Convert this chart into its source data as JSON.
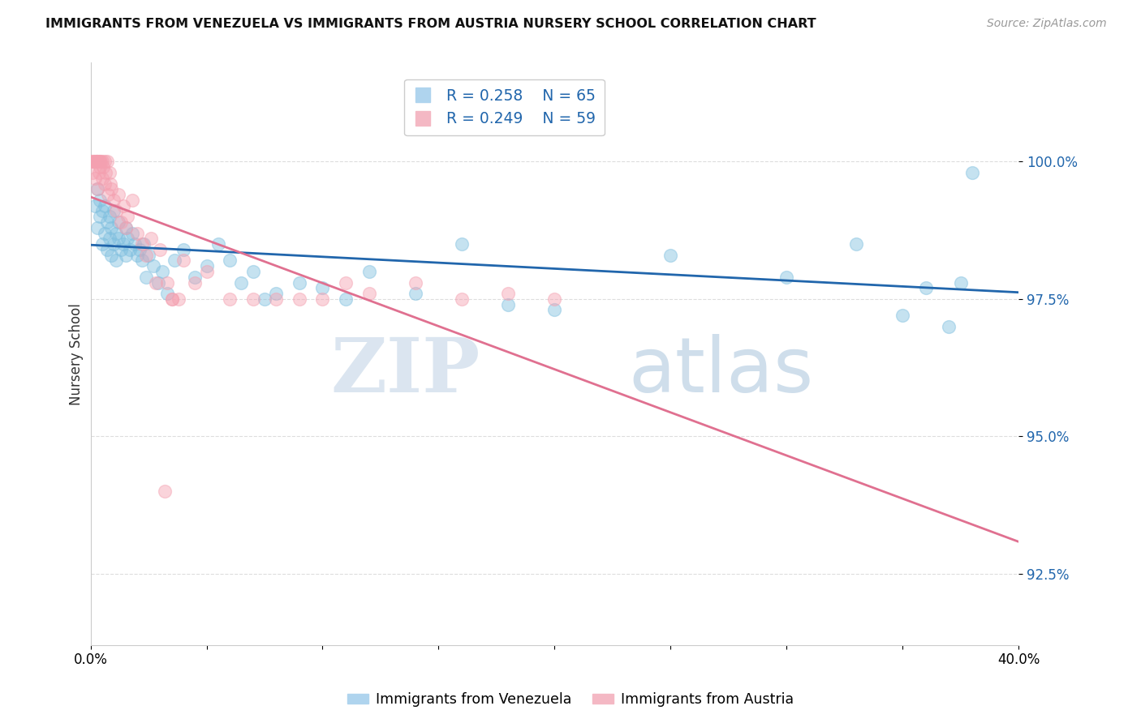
{
  "title": "IMMIGRANTS FROM VENEZUELA VS IMMIGRANTS FROM AUSTRIA NURSERY SCHOOL CORRELATION CHART",
  "source": "Source: ZipAtlas.com",
  "ylabel": "Nursery School",
  "y_ticks": [
    92.5,
    95.0,
    97.5,
    100.0
  ],
  "x_min": 0.0,
  "x_max": 40.0,
  "y_min": 91.2,
  "y_max": 101.8,
  "legend_r1": "R = 0.258",
  "legend_n1": "N = 65",
  "legend_r2": "R = 0.249",
  "legend_n2": "N = 59",
  "color_venezuela": "#7fbfdf",
  "color_austria": "#f4a0b0",
  "color_trendline_venezuela": "#2166ac",
  "color_trendline_austria": "#e07090",
  "watermark_zip": "ZIP",
  "watermark_atlas": "atlas",
  "venezuela_x": [
    0.2,
    0.3,
    0.3,
    0.4,
    0.4,
    0.5,
    0.5,
    0.6,
    0.6,
    0.7,
    0.7,
    0.8,
    0.8,
    0.9,
    0.9,
    1.0,
    1.0,
    1.1,
    1.1,
    1.2,
    1.2,
    1.3,
    1.4,
    1.5,
    1.5,
    1.6,
    1.7,
    1.8,
    1.9,
    2.0,
    2.1,
    2.2,
    2.3,
    2.4,
    2.5,
    2.7,
    2.9,
    3.1,
    3.3,
    3.6,
    4.0,
    4.5,
    5.0,
    5.5,
    6.0,
    6.5,
    7.0,
    7.5,
    8.0,
    9.0,
    10.0,
    11.0,
    12.0,
    14.0,
    16.0,
    18.0,
    20.0,
    25.0,
    30.0,
    33.0,
    35.0,
    37.0,
    38.0,
    36.0,
    37.5
  ],
  "venezuela_y": [
    99.2,
    98.8,
    99.5,
    99.0,
    99.3,
    98.5,
    99.1,
    98.7,
    99.2,
    98.4,
    98.9,
    98.6,
    99.0,
    98.3,
    98.8,
    98.5,
    99.1,
    98.2,
    98.7,
    98.6,
    98.9,
    98.4,
    98.5,
    98.3,
    98.8,
    98.6,
    98.4,
    98.7,
    98.5,
    98.3,
    98.4,
    98.2,
    98.5,
    97.9,
    98.3,
    98.1,
    97.8,
    98.0,
    97.6,
    98.2,
    98.4,
    97.9,
    98.1,
    98.5,
    98.2,
    97.8,
    98.0,
    97.5,
    97.6,
    97.8,
    97.7,
    97.5,
    98.0,
    97.6,
    98.5,
    97.4,
    97.3,
    98.3,
    97.9,
    98.5,
    97.2,
    97.0,
    99.8,
    97.7,
    97.8
  ],
  "austria_x": [
    0.05,
    0.1,
    0.15,
    0.1,
    0.2,
    0.2,
    0.25,
    0.25,
    0.3,
    0.3,
    0.35,
    0.35,
    0.4,
    0.4,
    0.45,
    0.5,
    0.5,
    0.55,
    0.6,
    0.6,
    0.65,
    0.7,
    0.75,
    0.8,
    0.85,
    0.9,
    1.0,
    1.1,
    1.2,
    1.3,
    1.4,
    1.5,
    1.6,
    1.8,
    2.0,
    2.2,
    2.4,
    2.6,
    2.8,
    3.0,
    3.5,
    4.0,
    4.5,
    5.0,
    6.0,
    7.0,
    8.0,
    9.0,
    10.0,
    11.0,
    12.0,
    14.0,
    16.0,
    18.0,
    20.0,
    3.2,
    3.3,
    3.5,
    3.8
  ],
  "austria_y": [
    100.0,
    100.0,
    100.0,
    99.8,
    100.0,
    99.7,
    100.0,
    100.0,
    100.0,
    99.5,
    100.0,
    99.8,
    100.0,
    99.9,
    100.0,
    100.0,
    99.7,
    99.9,
    100.0,
    99.6,
    99.8,
    100.0,
    99.4,
    99.8,
    99.6,
    99.5,
    99.3,
    99.1,
    99.4,
    98.9,
    99.2,
    98.8,
    99.0,
    99.3,
    98.7,
    98.5,
    98.3,
    98.6,
    97.8,
    98.4,
    97.5,
    98.2,
    97.8,
    98.0,
    97.5,
    97.5,
    97.5,
    97.5,
    97.5,
    97.8,
    97.6,
    97.8,
    97.5,
    97.6,
    97.5,
    94.0,
    97.8,
    97.5,
    97.5
  ]
}
